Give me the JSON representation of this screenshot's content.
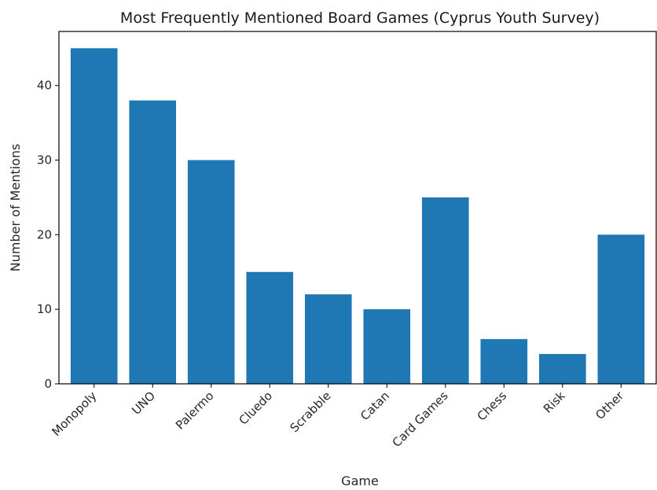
{
  "chart_data": {
    "type": "bar",
    "title": "Most Frequently Mentioned Board Games (Cyprus Youth Survey)",
    "xlabel": "Game",
    "ylabel": "Number of Mentions",
    "categories": [
      "Monopoly",
      "UNO",
      "Palermo",
      "Cluedo",
      "Scrabble",
      "Catan",
      "Card Games",
      "Chess",
      "Risk",
      "Other"
    ],
    "values": [
      45,
      38,
      30,
      15,
      12,
      10,
      25,
      6,
      4,
      20
    ],
    "ylim": [
      0,
      47.25
    ],
    "yticks": [
      0,
      10,
      20,
      30,
      40
    ],
    "bar_color": "#1f77b4",
    "grid": false,
    "legend": "none"
  }
}
